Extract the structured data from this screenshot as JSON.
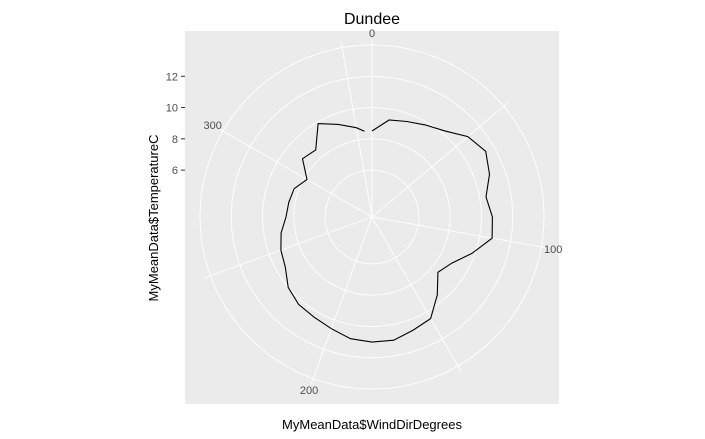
{
  "chart_data": {
    "type": "line",
    "coord": "polar",
    "title": "Dundee",
    "xlabel": "MyMeanData$WindDirDegrees",
    "ylabel": "MyMeanData$TemperatureC",
    "theta_range": [
      0,
      360
    ],
    "theta_ticks": [
      0,
      100,
      200,
      300
    ],
    "r_range": [
      3.0,
      14.0
    ],
    "r_ticks": [
      6,
      8,
      10,
      12
    ],
    "grid": true,
    "colors": {
      "panel": "#ebebeb",
      "grid": "#ffffff",
      "line": "#000000",
      "tick_text": "#4d4d4d"
    },
    "series": [
      {
        "x": [
          0,
          10,
          20,
          30,
          40,
          50,
          60,
          70,
          80,
          90,
          100,
          110,
          120,
          130,
          140,
          150,
          160,
          170,
          180,
          190,
          200,
          210,
          220,
          230,
          240,
          250,
          260,
          270,
          280,
          290,
          300,
          310,
          320,
          330,
          340,
          350,
          355
        ],
        "y": [
          8.5,
          9.3,
          9.5,
          9.8,
          10.2,
          11.0,
          11.4,
          11.0,
          10.4,
          10.7,
          10.8,
          9.8,
          8.9,
          8.5,
          9.5,
          10.5,
          10.7,
          11.0,
          11.0,
          10.9,
          10.6,
          10.4,
          10.3,
          10.0,
          9.4,
          9.2,
          8.9,
          8.5,
          8.4,
          8.3,
          7.8,
          8.8,
          8.6,
          9.9,
          9.3,
          8.8,
          8.5
        ]
      }
    ]
  }
}
